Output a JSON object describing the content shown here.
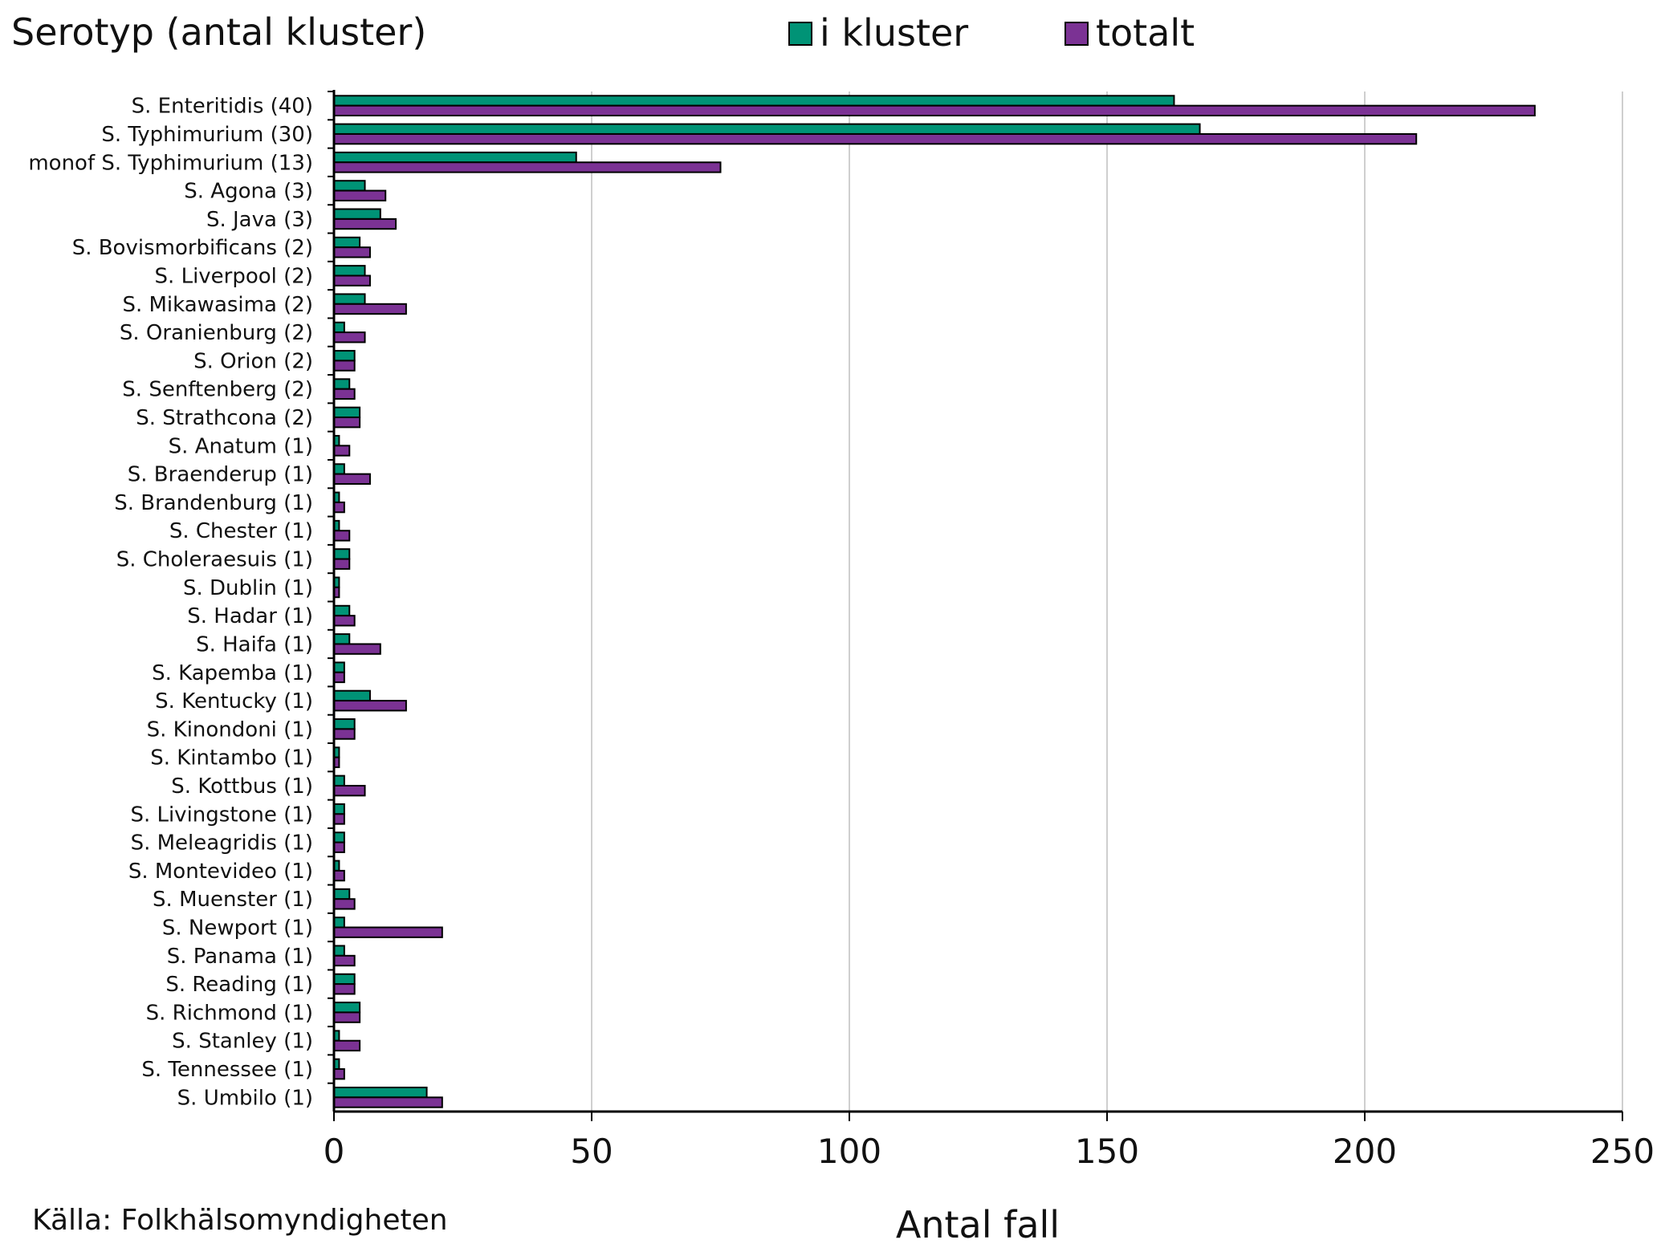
{
  "chart_data": {
    "type": "bar",
    "orientation": "horizontal",
    "title": "Serotyp (antal kluster)",
    "xlabel": "Antal fall",
    "source": "Källa: Folkhälsomyndigheten",
    "xlim": [
      0,
      250
    ],
    "xticks": [
      "0",
      "50",
      "100",
      "150",
      "200",
      "250"
    ],
    "grid": true,
    "legend_position": "top",
    "categories": [
      "S. Enteritidis (40)",
      "S. Typhimurium (30)",
      "monof S. Typhimurium (13)",
      "S. Agona (3)",
      "S. Java (3)",
      "S. Bovismorbificans (2)",
      "S. Liverpool (2)",
      "S. Mikawasima (2)",
      "S. Oranienburg (2)",
      "S. Orion (2)",
      "S. Senftenberg (2)",
      "S. Strathcona (2)",
      "S. Anatum (1)",
      "S. Braenderup (1)",
      "S. Brandenburg (1)",
      "S. Chester (1)",
      "S. Choleraesuis (1)",
      "S. Dublin (1)",
      "S. Hadar (1)",
      "S. Haifa (1)",
      "S. Kapemba (1)",
      "S. Kentucky (1)",
      "S. Kinondoni (1)",
      "S. Kintambo (1)",
      "S. Kottbus (1)",
      "S. Livingstone (1)",
      "S. Meleagridis (1)",
      "S. Montevideo (1)",
      "S. Muenster (1)",
      "S. Newport (1)",
      "S. Panama (1)",
      "S. Reading (1)",
      "S. Richmond (1)",
      "S. Stanley (1)",
      "S. Tennessee (1)",
      "S. Umbilo (1)"
    ],
    "series": [
      {
        "name": "i kluster",
        "color": "#009376",
        "values": [
          163,
          168,
          47,
          6,
          9,
          5,
          6,
          6,
          2,
          4,
          3,
          5,
          1,
          2,
          1,
          1,
          3,
          1,
          3,
          3,
          2,
          7,
          4,
          1,
          2,
          2,
          2,
          1,
          3,
          2,
          2,
          4,
          5,
          1,
          1,
          18
        ]
      },
      {
        "name": "totalt",
        "color": "#7b3294",
        "values": [
          233,
          210,
          75,
          10,
          12,
          7,
          7,
          14,
          6,
          4,
          4,
          5,
          3,
          7,
          2,
          3,
          3,
          1,
          4,
          9,
          2,
          14,
          4,
          1,
          6,
          2,
          2,
          2,
          4,
          21,
          4,
          4,
          5,
          5,
          2,
          21
        ]
      }
    ]
  }
}
